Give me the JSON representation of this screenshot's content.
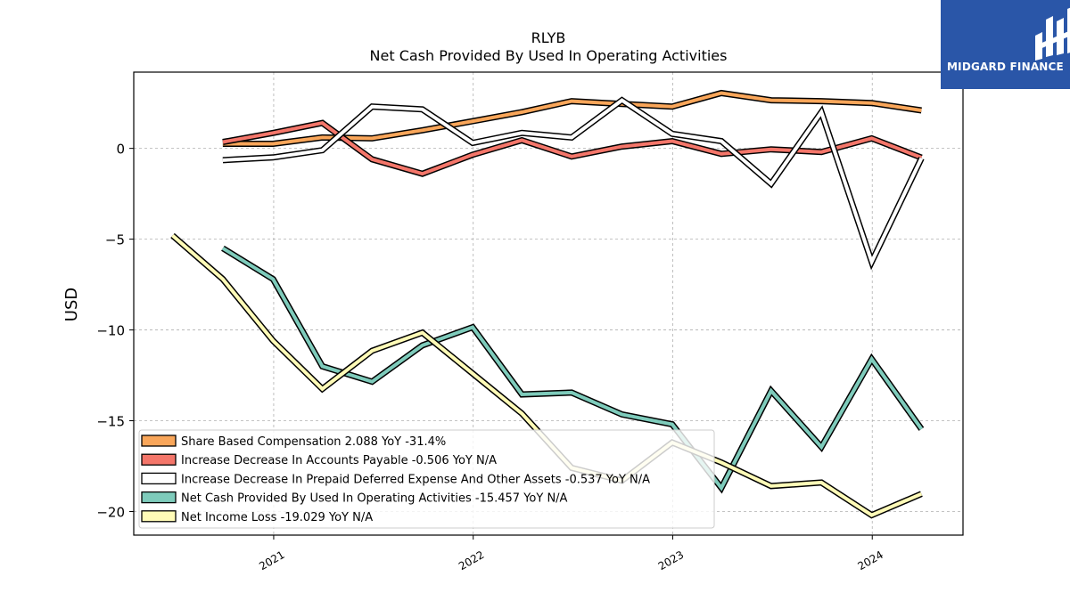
{
  "brand": {
    "name": "MIDGARD FINANCE",
    "bg_color": "#2a56a8",
    "icon": "midgard-logo-icon"
  },
  "chart_data": {
    "type": "line",
    "title": "RLYB",
    "subtitle": "Net Cash Provided By Used In Operating Activities",
    "xlabel": "",
    "ylabel": "USD",
    "ylim": [
      -21.3,
      4.2
    ],
    "yticks": [
      0,
      -5,
      -10,
      -15,
      -20
    ],
    "ytick_labels": [
      "0",
      "−5",
      "−10",
      "−15",
      "−20"
    ],
    "xlim": [
      "2020-04-20",
      "2024-06-15"
    ],
    "xticks": [
      "2021-01-01",
      "2022-01-01",
      "2023-01-01",
      "2024-01-01"
    ],
    "xtick_labels": [
      "2021",
      "2022",
      "2023",
      "2024"
    ],
    "grid": true,
    "legend_position": "lower-left",
    "series": [
      {
        "name": "Share Based Compensation",
        "legend": "Share Based Compensation  2.088 YoY -31.4%",
        "color": "#f9a65a",
        "x": [
          "2020-09-30",
          "2020-12-31",
          "2021-03-31",
          "2021-06-30",
          "2021-09-30",
          "2021-12-31",
          "2022-03-31",
          "2022-06-30",
          "2022-09-30",
          "2022-12-31",
          "2023-03-31",
          "2023-06-30",
          "2023-09-30",
          "2023-12-31",
          "2024-03-31"
        ],
        "values": [
          0.25,
          0.25,
          0.6,
          0.55,
          1.0,
          1.5,
          2.0,
          2.6,
          2.45,
          2.3,
          3.05,
          2.65,
          2.6,
          2.5,
          2.09
        ]
      },
      {
        "name": "Increase Decrease In Accounts Payable",
        "legend": "Increase Decrease In Accounts Payable  -0.506 YoY N/A",
        "color": "#f4766a",
        "x": [
          "2020-09-30",
          "2020-12-31",
          "2021-03-31",
          "2021-06-30",
          "2021-09-30",
          "2021-12-31",
          "2022-03-31",
          "2022-06-30",
          "2022-09-30",
          "2022-12-31",
          "2023-03-31",
          "2023-06-30",
          "2023-09-30",
          "2023-12-31",
          "2024-03-31"
        ],
        "values": [
          0.35,
          0.85,
          1.4,
          -0.6,
          -1.4,
          -0.35,
          0.45,
          -0.45,
          0.1,
          0.4,
          -0.3,
          -0.05,
          -0.2,
          0.55,
          -0.51
        ]
      },
      {
        "name": "Increase Decrease In Prepaid Deferred Expense And Other Assets",
        "legend": "Increase Decrease In Prepaid Deferred Expense And Other Assets  -0.537 YoY N/A",
        "color": "#ffffff",
        "x": [
          "2020-09-30",
          "2020-12-31",
          "2021-03-31",
          "2021-06-30",
          "2021-09-30",
          "2021-12-31",
          "2022-03-31",
          "2022-06-30",
          "2022-09-30",
          "2022-12-31",
          "2023-03-31",
          "2023-06-30",
          "2023-09-30",
          "2023-12-31",
          "2024-03-31"
        ],
        "values": [
          -0.65,
          -0.5,
          -0.1,
          2.3,
          2.15,
          0.3,
          0.85,
          0.6,
          2.65,
          0.8,
          0.4,
          -1.95,
          2.0,
          -6.25,
          -0.54
        ]
      },
      {
        "name": "Net Cash Provided By Used In Operating Activities",
        "legend": "Net Cash Provided By Used In Operating Activities  -15.457 YoY N/A",
        "color": "#7ecbbb",
        "x": [
          "2020-09-30",
          "2020-12-31",
          "2021-03-31",
          "2021-06-30",
          "2021-09-30",
          "2021-12-31",
          "2022-03-31",
          "2022-06-30",
          "2022-09-30",
          "2022-12-31",
          "2023-03-31",
          "2023-06-30",
          "2023-09-30",
          "2023-12-31",
          "2024-03-31"
        ],
        "values": [
          -5.5,
          -7.2,
          -12.0,
          -12.85,
          -10.85,
          -9.85,
          -13.55,
          -13.45,
          -14.65,
          -15.2,
          -18.7,
          -13.35,
          -16.45,
          -11.6,
          -15.46
        ]
      },
      {
        "name": "Net Income Loss",
        "legend": "Net Income Loss  -19.029 YoY N/A",
        "color": "#fffbb7",
        "x": [
          "2020-06-30",
          "2020-09-30",
          "2020-12-31",
          "2021-03-31",
          "2021-06-30",
          "2021-09-30",
          "2021-12-31",
          "2022-03-31",
          "2022-06-30",
          "2022-09-30",
          "2022-12-31",
          "2023-03-31",
          "2023-06-30",
          "2023-09-30",
          "2023-12-31",
          "2024-03-31"
        ],
        "values": [
          -4.8,
          -7.2,
          -10.6,
          -13.25,
          -11.15,
          -10.15,
          -12.4,
          -14.6,
          -17.6,
          -18.3,
          -16.2,
          -17.3,
          -18.6,
          -18.4,
          -20.2,
          -19.03
        ]
      }
    ]
  }
}
